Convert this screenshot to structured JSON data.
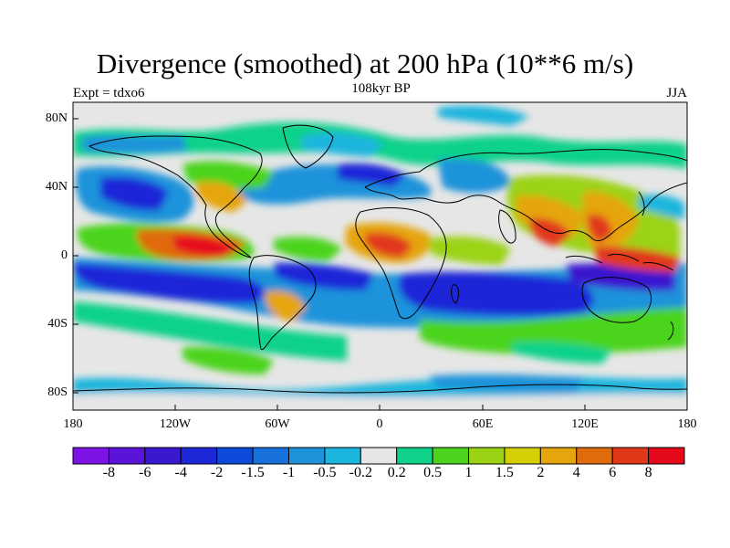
{
  "title": "Divergence (smoothed) at 200 hPa (10**6 m/s)",
  "subtitle": "108kyr BP",
  "left_label": "Expt = tdxo6",
  "right_label": "JJA",
  "lat_ticks": [
    "80N",
    "40N",
    "0",
    "40S",
    "80S"
  ],
  "lon_ticks": [
    "180",
    "120W",
    "60W",
    "0",
    "60E",
    "120E",
    "180"
  ],
  "colorbar": {
    "labels": [
      "-8",
      "-6",
      "-4",
      "-2",
      "-1.5",
      "-1",
      "-0.5",
      "-0.2",
      "0.2",
      "0.5",
      "1",
      "1.5",
      "2",
      "4",
      "6",
      "8"
    ],
    "colors": [
      "#7d13e6",
      "#5b12d9",
      "#3a18cf",
      "#1c28d8",
      "#0e4ad9",
      "#1671dc",
      "#1f93da",
      "#1cb5dd",
      "#e6e6e6",
      "#10d28a",
      "#4cd41c",
      "#9bd314",
      "#d4cf05",
      "#e5a50c",
      "#e06b0d",
      "#e1381a",
      "#e6091c"
    ]
  },
  "legend": {
    "colors": {
      "strong_negative": "#1a1ad6",
      "negative": "#1f93da",
      "weak": "#e6e6e6",
      "weak_positive": "#10d28a",
      "positive": "#4cd41c",
      "strong_positive": "#e1381a"
    }
  }
}
